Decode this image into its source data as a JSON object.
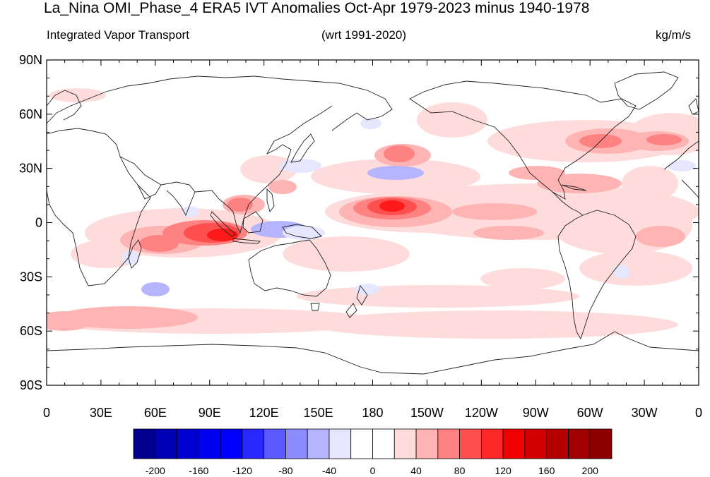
{
  "title": "La_Nina OMI_Phase_4 ERA5 IVT Anomalies Oct-Apr 1979-2023 minus 1940-1978",
  "subtitle_left": "Integrated Vapor Transport",
  "subtitle_center": "(wrt 1991-2020)",
  "subtitle_right": "kg/m/s",
  "lat_ticks": [
    "90N",
    "60N",
    "30N",
    "0",
    "30S",
    "60S",
    "90S"
  ],
  "lon_ticks": [
    "0",
    "30E",
    "60E",
    "90E",
    "120E",
    "150E",
    "180",
    "150W",
    "120W",
    "90W",
    "60W",
    "30W",
    "0"
  ],
  "colorbar": {
    "labels": [
      "-200",
      "-160",
      "-120",
      "-80",
      "-40",
      "0",
      "40",
      "80",
      "120",
      "160",
      "200"
    ],
    "colors": [
      "#00008c",
      "#0000b4",
      "#0000d2",
      "#0000ee",
      "#0000ff",
      "#2828ff",
      "#5a5aff",
      "#8c8cff",
      "#b4b4ff",
      "#e6e6ff",
      "#ffffff",
      "#ffffff",
      "#ffdcdc",
      "#ffb4b4",
      "#ff8282",
      "#ff5050",
      "#ff2828",
      "#f00000",
      "#d20000",
      "#b40000",
      "#a00000",
      "#8c0000"
    ]
  },
  "colors": {
    "pos_light": "#ffdcdc",
    "pos_med": "#ffb4b4",
    "pos_strong": "#ff8282",
    "pos_stronger": "#ff5050",
    "pos_max": "#ff1a1a",
    "neg_light": "#e6e6ff",
    "neg_med": "#b4b4ff"
  }
}
